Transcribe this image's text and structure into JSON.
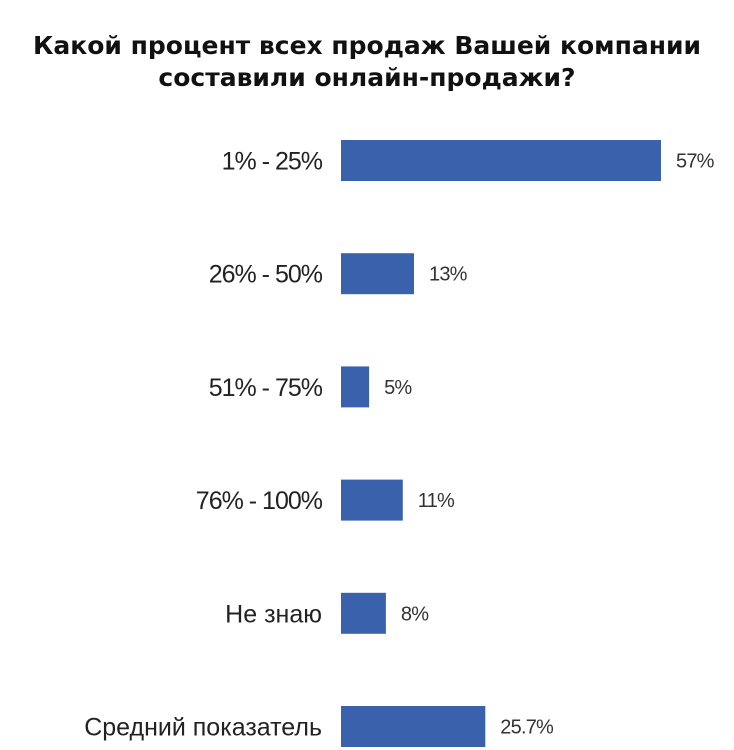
{
  "chart_data": {
    "type": "bar",
    "orientation": "horizontal",
    "title_lines": [
      "Какой процент всех продаж Вашей компании",
      "составили онлайн-продажи?"
    ],
    "categories": [
      "1% - 25%",
      "26% - 50%",
      "51% - 75%",
      "76% - 100%",
      "Не знаю",
      "Средний показатель"
    ],
    "values": [
      57,
      13,
      5,
      11,
      8,
      25.7
    ],
    "value_labels": [
      "57%",
      "13%",
      "5%",
      "11%",
      "8%",
      "25.7%"
    ],
    "xlim": [
      0,
      57
    ],
    "grid": false,
    "legend": "none",
    "bar_color": "#3a62ac"
  }
}
